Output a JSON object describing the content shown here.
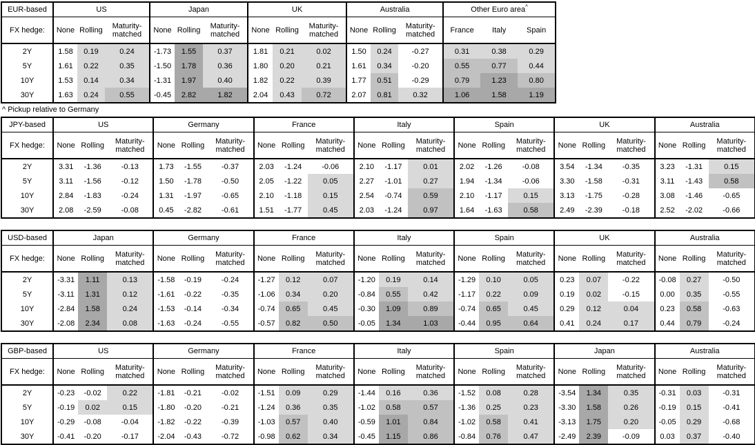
{
  "page": {
    "background": "#ffffff",
    "text_color": "#000000",
    "border_color": "#000000"
  },
  "labels": {
    "fx_hedge": "FX hedge:",
    "col_headers": [
      "None",
      "Rolling",
      "Maturity-matched"
    ],
    "row_labels": [
      "2Y",
      "5Y",
      "10Y",
      "30Y"
    ]
  },
  "footnote": "^ Pickup relative to Germany",
  "heatmap": {
    "thresholds": [
      {
        "min": 1.0,
        "color": "#a8a8a8"
      },
      {
        "min": 0.5,
        "color": "#c1c1c1"
      },
      {
        "min": 0.0,
        "color": "#d9d9d9"
      }
    ],
    "negative_color": "#ffffff"
  },
  "tables": [
    {
      "base_label": "EUR-based",
      "groups": [
        {
          "name": "US",
          "rows": [
            [
              "1.58",
              "0.19",
              "0.24"
            ],
            [
              "1.61",
              "0.22",
              "0.35"
            ],
            [
              "1.53",
              "0.14",
              "0.34"
            ],
            [
              "1.63",
              "0.24",
              "0.55"
            ]
          ]
        },
        {
          "name": "Japan",
          "rows": [
            [
              "-1.73",
              "1.55",
              "0.37"
            ],
            [
              "-1.50",
              "1.78",
              "0.36"
            ],
            [
              "-1.31",
              "1.97",
              "0.40"
            ],
            [
              "-0.45",
              "2.82",
              "1.82"
            ]
          ]
        },
        {
          "name": "UK",
          "rows": [
            [
              "1.81",
              "0.21",
              "0.02"
            ],
            [
              "1.80",
              "0.20",
              "0.21"
            ],
            [
              "1.82",
              "0.22",
              "0.39"
            ],
            [
              "2.04",
              "0.43",
              "0.72"
            ]
          ]
        },
        {
          "name": "Australia",
          "rows": [
            [
              "1.50",
              "0.24",
              "-0.27"
            ],
            [
              "1.61",
              "0.34",
              "-0.20"
            ],
            [
              "1.77",
              "0.51",
              "-0.29"
            ],
            [
              "2.07",
              "0.81",
              "0.32"
            ]
          ]
        },
        {
          "name": "Other Euro area",
          "sup": "^",
          "cols": [
            "France",
            "Italy",
            "Spain"
          ],
          "shade_from": 0,
          "rows": [
            [
              "0.31",
              "0.38",
              "0.29"
            ],
            [
              "0.55",
              "0.77",
              "0.44"
            ],
            [
              "0.79",
              "1.23",
              "0.80"
            ],
            [
              "1.06",
              "1.58",
              "1.19"
            ]
          ]
        }
      ]
    },
    {
      "base_label": "JPY-based",
      "groups": [
        {
          "name": "US",
          "rows": [
            [
              "3.31",
              "-1.36",
              "-0.13"
            ],
            [
              "3.11",
              "-1.56",
              "-0.12"
            ],
            [
              "2.84",
              "-1.83",
              "-0.24"
            ],
            [
              "2.08",
              "-2.59",
              "-0.08"
            ]
          ]
        },
        {
          "name": "Germany",
          "rows": [
            [
              "1.73",
              "-1.55",
              "-0.37"
            ],
            [
              "1.50",
              "-1.78",
              "-0.50"
            ],
            [
              "1.31",
              "-1.97",
              "-0.65"
            ],
            [
              "0.45",
              "-2.82",
              "-0.61"
            ]
          ]
        },
        {
          "name": "France",
          "rows": [
            [
              "2.03",
              "-1.24",
              "-0.06"
            ],
            [
              "2.05",
              "-1.22",
              "0.05"
            ],
            [
              "2.10",
              "-1.18",
              "0.15"
            ],
            [
              "1.51",
              "-1.77",
              "0.45"
            ]
          ]
        },
        {
          "name": "Italy",
          "rows": [
            [
              "2.10",
              "-1.17",
              "0.01"
            ],
            [
              "2.27",
              "-1.01",
              "0.27"
            ],
            [
              "2.54",
              "-0.74",
              "0.59"
            ],
            [
              "2.03",
              "-1.24",
              "0.97"
            ]
          ]
        },
        {
          "name": "Spain",
          "rows": [
            [
              "2.02",
              "-1.26",
              "-0.08"
            ],
            [
              "1.94",
              "-1.34",
              "-0.06"
            ],
            [
              "2.10",
              "-1.17",
              "0.15"
            ],
            [
              "1.64",
              "-1.63",
              "0.58"
            ]
          ]
        },
        {
          "name": "UK",
          "rows": [
            [
              "3.54",
              "-1.34",
              "-0.35"
            ],
            [
              "3.30",
              "-1.58",
              "-0.31"
            ],
            [
              "3.13",
              "-1.75",
              "-0.28"
            ],
            [
              "2.49",
              "-2.39",
              "-0.18"
            ]
          ]
        },
        {
          "name": "Australia",
          "rows": [
            [
              "3.23",
              "-1.31",
              "0.15"
            ],
            [
              "3.11",
              "-1.43",
              "0.58"
            ],
            [
              "3.08",
              "-1.46",
              "-0.65"
            ],
            [
              "2.52",
              "-2.02",
              "-0.66"
            ]
          ]
        }
      ]
    },
    {
      "base_label": "USD-based",
      "groups": [
        {
          "name": "Japan",
          "rows": [
            [
              "-3.31",
              "1.11",
              "0.13"
            ],
            [
              "-3.11",
              "1.31",
              "0.12"
            ],
            [
              "-2.84",
              "1.58",
              "0.24"
            ],
            [
              "-2.08",
              "2.34",
              "0.08"
            ]
          ]
        },
        {
          "name": "Germany",
          "rows": [
            [
              "-1.58",
              "-0.19",
              "-0.24"
            ],
            [
              "-1.61",
              "-0.22",
              "-0.35"
            ],
            [
              "-1.53",
              "-0.14",
              "-0.34"
            ],
            [
              "-1.63",
              "-0.24",
              "-0.55"
            ]
          ]
        },
        {
          "name": "France",
          "rows": [
            [
              "-1.27",
              "0.12",
              "0.07"
            ],
            [
              "-1.06",
              "0.34",
              "0.20"
            ],
            [
              "-0.74",
              "0.65",
              "0.45"
            ],
            [
              "-0.57",
              "0.82",
              "0.50"
            ]
          ]
        },
        {
          "name": "Italy",
          "rows": [
            [
              "-1.20",
              "0.19",
              "0.14"
            ],
            [
              "-0.84",
              "0.55",
              "0.42"
            ],
            [
              "-0.30",
              "1.09",
              "0.89"
            ],
            [
              "-0.05",
              "1.34",
              "1.03"
            ]
          ]
        },
        {
          "name": "Spain",
          "rows": [
            [
              "-1.29",
              "0.10",
              "0.05"
            ],
            [
              "-1.17",
              "0.22",
              "0.09"
            ],
            [
              "-0.74",
              "0.65",
              "0.45"
            ],
            [
              "-0.44",
              "0.95",
              "0.64"
            ]
          ]
        },
        {
          "name": "UK",
          "rows": [
            [
              "0.23",
              "0.07",
              "-0.22"
            ],
            [
              "0.19",
              "0.02",
              "-0.15"
            ],
            [
              "0.29",
              "0.12",
              "0.04"
            ],
            [
              "0.41",
              "0.24",
              "0.17"
            ]
          ]
        },
        {
          "name": "Australia",
          "rows": [
            [
              "-0.08",
              "0.27",
              "-0.50"
            ],
            [
              "0.00",
              "0.35",
              "-0.55"
            ],
            [
              "0.23",
              "0.58",
              "-0.63"
            ],
            [
              "0.44",
              "0.79",
              "-0.24"
            ]
          ]
        }
      ]
    },
    {
      "base_label": "GBP-based",
      "groups": [
        {
          "name": "US",
          "rows": [
            [
              "-0.23",
              "-0.02",
              "0.22"
            ],
            [
              "-0.19",
              "0.02",
              "0.15"
            ],
            [
              "-0.29",
              "-0.08",
              "-0.04"
            ],
            [
              "-0.41",
              "-0.20",
              "-0.17"
            ]
          ]
        },
        {
          "name": "Germany",
          "rows": [
            [
              "-1.81",
              "-0.21",
              "-0.02"
            ],
            [
              "-1.80",
              "-0.20",
              "-0.21"
            ],
            [
              "-1.82",
              "-0.22",
              "-0.39"
            ],
            [
              "-2.04",
              "-0.43",
              "-0.72"
            ]
          ]
        },
        {
          "name": "France",
          "rows": [
            [
              "-1.51",
              "0.09",
              "0.29"
            ],
            [
              "-1.24",
              "0.36",
              "0.35"
            ],
            [
              "-1.03",
              "0.57",
              "0.40"
            ],
            [
              "-0.98",
              "0.62",
              "0.34"
            ]
          ]
        },
        {
          "name": "Italy",
          "rows": [
            [
              "-1.44",
              "0.16",
              "0.36"
            ],
            [
              "-1.02",
              "0.58",
              "0.57"
            ],
            [
              "-0.59",
              "1.01",
              "0.84"
            ],
            [
              "-0.45",
              "1.15",
              "0.86"
            ]
          ]
        },
        {
          "name": "Spain",
          "rows": [
            [
              "-1.52",
              "0.08",
              "0.28"
            ],
            [
              "-1.36",
              "0.25",
              "0.23"
            ],
            [
              "-1.02",
              "0.58",
              "0.41"
            ],
            [
              "-0.84",
              "0.76",
              "0.47"
            ]
          ]
        },
        {
          "name": "Japan",
          "rows": [
            [
              "-3.54",
              "1.34",
              "0.35"
            ],
            [
              "-3.30",
              "1.58",
              "0.26"
            ],
            [
              "-3.13",
              "1.75",
              "0.20"
            ],
            [
              "-2.49",
              "2.39",
              "-0.09"
            ]
          ]
        },
        {
          "name": "Australia",
          "rows": [
            [
              "-0.31",
              "0.03",
              "-0.31"
            ],
            [
              "-0.19",
              "0.15",
              "-0.41"
            ],
            [
              "-0.05",
              "0.29",
              "-0.68"
            ],
            [
              "0.03",
              "0.37",
              "-0.40"
            ]
          ]
        }
      ]
    }
  ]
}
